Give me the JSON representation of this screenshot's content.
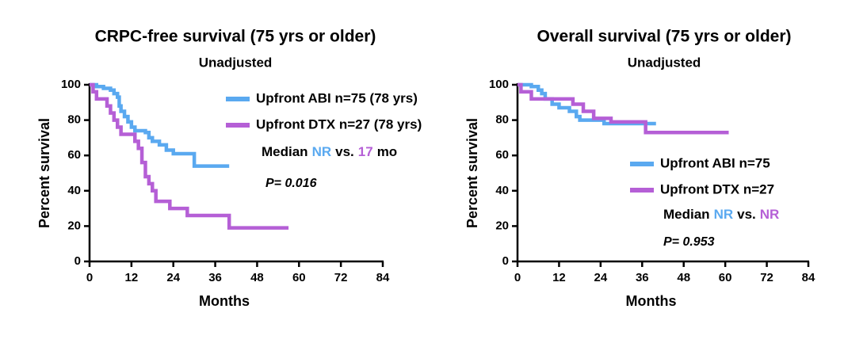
{
  "chart_data": [
    {
      "type": "line",
      "step": true,
      "title": "CRPC-free survival (75 yrs or older)",
      "subtitle": "Unadjusted",
      "xlabel": "Months",
      "ylabel": "Percent survival",
      "xlim": [
        0,
        84
      ],
      "xticks": [
        0,
        12,
        24,
        36,
        48,
        60,
        72,
        84
      ],
      "ylim": [
        0,
        100
      ],
      "yticks": [
        0,
        20,
        40,
        60,
        80,
        100
      ],
      "series": [
        {
          "name": "Upfront ABI n=75 (78 yrs)",
          "color": "#5aa9f0",
          "x": [
            0,
            2,
            4,
            6,
            7,
            8,
            8.5,
            9,
            10,
            11,
            12,
            13,
            16,
            17,
            18,
            20,
            22,
            24,
            30,
            40
          ],
          "values": [
            100,
            99,
            98,
            97,
            95,
            93,
            88,
            85,
            82,
            79,
            76,
            74,
            73,
            70,
            68,
            66,
            63,
            61,
            54,
            54
          ]
        },
        {
          "name": "Upfront DTX n=27 (78 yrs)",
          "color": "#b55fd6",
          "x": [
            0,
            1,
            2,
            5,
            6,
            7,
            8,
            9,
            13,
            14,
            15,
            16,
            17,
            18,
            19,
            23,
            28,
            40,
            57
          ],
          "values": [
            100,
            96,
            92,
            88,
            84,
            80,
            76,
            72,
            68,
            64,
            56,
            48,
            44,
            40,
            34,
            30,
            26,
            19,
            19
          ]
        }
      ],
      "median_parts": [
        "Median",
        "NR",
        "vs.",
        "17",
        "mo"
      ],
      "p_value": "P= 0.016"
    },
    {
      "type": "line",
      "step": true,
      "title": "Overall survival (75 yrs or older)",
      "subtitle": "Unadjusted",
      "xlabel": "Months",
      "ylabel": "Percent survival",
      "xlim": [
        0,
        84
      ],
      "xticks": [
        0,
        12,
        24,
        36,
        48,
        60,
        72,
        84
      ],
      "ylim": [
        0,
        100
      ],
      "yticks": [
        0,
        20,
        40,
        60,
        80,
        100
      ],
      "series": [
        {
          "name": "Upfront ABI n=75",
          "color": "#5aa9f0",
          "x": [
            0,
            4,
            6,
            7,
            8,
            10,
            12,
            15,
            17,
            18,
            24,
            25,
            40
          ],
          "values": [
            100,
            99,
            97,
            95,
            92,
            89,
            87,
            85,
            82,
            80,
            80,
            78,
            78
          ]
        },
        {
          "name": "Upfront DTX n=27",
          "color": "#b55fd6",
          "x": [
            0,
            1,
            4,
            16,
            19,
            22,
            27,
            37,
            61
          ],
          "values": [
            100,
            96,
            92,
            89,
            85,
            81,
            79,
            73,
            73
          ]
        }
      ],
      "median_parts": [
        "Median",
        "NR",
        "vs.",
        "NR"
      ],
      "p_value": "P= 0.953"
    }
  ]
}
